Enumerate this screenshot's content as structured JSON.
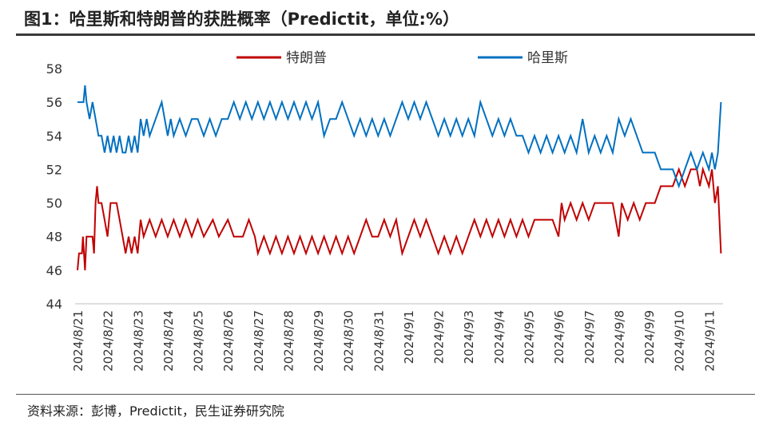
{
  "title": "图1：哈里斯和特朗普的获胜概率（Predictit，单位:%）",
  "source": "资料来源：彭博，Predictit，民生证券研究院",
  "chart_data": {
    "type": "line",
    "ylim": [
      44,
      58
    ],
    "yticks": [
      44,
      46,
      48,
      50,
      52,
      54,
      56,
      58
    ],
    "x_labels": [
      "2024/8/21",
      "2024/8/22",
      "2024/8/23",
      "2024/8/24",
      "2024/8/25",
      "2024/8/26",
      "2024/8/27",
      "2024/8/28",
      "2024/8/29",
      "2024/8/30",
      "2024/8/31",
      "2024/9/1",
      "2024/9/2",
      "2024/9/3",
      "2024/9/4",
      "2024/9/5",
      "2024/9/6",
      "2024/9/7",
      "2024/9/8",
      "2024/9/9",
      "2024/9/10",
      "2024/9/11"
    ],
    "legend_position": "top",
    "series": [
      {
        "name": "特朗普",
        "color": "#c00000",
        "points": [
          [
            0.0,
            46
          ],
          [
            0.05,
            47
          ],
          [
            0.15,
            47
          ],
          [
            0.18,
            48
          ],
          [
            0.25,
            46
          ],
          [
            0.3,
            48
          ],
          [
            0.5,
            48
          ],
          [
            0.55,
            47
          ],
          [
            0.6,
            50
          ],
          [
            0.65,
            51
          ],
          [
            0.7,
            50
          ],
          [
            0.8,
            50
          ],
          [
            0.9,
            49
          ],
          [
            1.0,
            48
          ],
          [
            1.1,
            50
          ],
          [
            1.3,
            50
          ],
          [
            1.4,
            49
          ],
          [
            1.5,
            48
          ],
          [
            1.6,
            47
          ],
          [
            1.7,
            48
          ],
          [
            1.8,
            47
          ],
          [
            1.9,
            48
          ],
          [
            2.0,
            47
          ],
          [
            2.1,
            49
          ],
          [
            2.2,
            48
          ],
          [
            2.4,
            49
          ],
          [
            2.6,
            48
          ],
          [
            2.8,
            49
          ],
          [
            3.0,
            48
          ],
          [
            3.2,
            49
          ],
          [
            3.4,
            48
          ],
          [
            3.6,
            49
          ],
          [
            3.8,
            48
          ],
          [
            4.0,
            49
          ],
          [
            4.2,
            48
          ],
          [
            4.5,
            49
          ],
          [
            4.7,
            48
          ],
          [
            5.0,
            49
          ],
          [
            5.2,
            48
          ],
          [
            5.5,
            48
          ],
          [
            5.7,
            49
          ],
          [
            5.9,
            48
          ],
          [
            6.0,
            47
          ],
          [
            6.2,
            48
          ],
          [
            6.4,
            47
          ],
          [
            6.6,
            48
          ],
          [
            6.8,
            47
          ],
          [
            7.0,
            48
          ],
          [
            7.2,
            47
          ],
          [
            7.4,
            48
          ],
          [
            7.6,
            47
          ],
          [
            7.8,
            48
          ],
          [
            8.0,
            47
          ],
          [
            8.2,
            48
          ],
          [
            8.4,
            47
          ],
          [
            8.6,
            48
          ],
          [
            8.8,
            47
          ],
          [
            9.0,
            48
          ],
          [
            9.2,
            47
          ],
          [
            9.4,
            48
          ],
          [
            9.6,
            49
          ],
          [
            9.8,
            48
          ],
          [
            10.0,
            48
          ],
          [
            10.2,
            49
          ],
          [
            10.4,
            48
          ],
          [
            10.6,
            49
          ],
          [
            10.8,
            47
          ],
          [
            11.0,
            48
          ],
          [
            11.2,
            49
          ],
          [
            11.4,
            48
          ],
          [
            11.6,
            49
          ],
          [
            11.8,
            48
          ],
          [
            12.0,
            47
          ],
          [
            12.2,
            48
          ],
          [
            12.4,
            47
          ],
          [
            12.6,
            48
          ],
          [
            12.8,
            47
          ],
          [
            13.0,
            48
          ],
          [
            13.2,
            49
          ],
          [
            13.4,
            48
          ],
          [
            13.6,
            49
          ],
          [
            13.8,
            48
          ],
          [
            14.0,
            49
          ],
          [
            14.2,
            48
          ],
          [
            14.4,
            49
          ],
          [
            14.6,
            48
          ],
          [
            14.8,
            49
          ],
          [
            15.0,
            48
          ],
          [
            15.2,
            49
          ],
          [
            15.5,
            49
          ],
          [
            15.8,
            49
          ],
          [
            16.0,
            48
          ],
          [
            16.1,
            50
          ],
          [
            16.2,
            49
          ],
          [
            16.4,
            50
          ],
          [
            16.6,
            49
          ],
          [
            16.8,
            50
          ],
          [
            17.0,
            49
          ],
          [
            17.2,
            50
          ],
          [
            17.5,
            50
          ],
          [
            17.8,
            50
          ],
          [
            18.0,
            48
          ],
          [
            18.1,
            50
          ],
          [
            18.3,
            49
          ],
          [
            18.5,
            50
          ],
          [
            18.7,
            49
          ],
          [
            18.9,
            50
          ],
          [
            19.0,
            50
          ],
          [
            19.2,
            50
          ],
          [
            19.4,
            51
          ],
          [
            19.6,
            51
          ],
          [
            19.8,
            51
          ],
          [
            20.0,
            52
          ],
          [
            20.2,
            51
          ],
          [
            20.4,
            52
          ],
          [
            20.6,
            52
          ],
          [
            20.7,
            51
          ],
          [
            20.8,
            52
          ],
          [
            21.0,
            51
          ],
          [
            21.1,
            52
          ],
          [
            21.2,
            50
          ],
          [
            21.3,
            51
          ],
          [
            21.4,
            47
          ]
        ]
      },
      {
        "name": "哈里斯",
        "color": "#0070c0",
        "points": [
          [
            0.0,
            56
          ],
          [
            0.2,
            56
          ],
          [
            0.25,
            57
          ],
          [
            0.3,
            56
          ],
          [
            0.4,
            55
          ],
          [
            0.5,
            56
          ],
          [
            0.6,
            55
          ],
          [
            0.7,
            54
          ],
          [
            0.8,
            54
          ],
          [
            0.9,
            53
          ],
          [
            1.0,
            54
          ],
          [
            1.1,
            53
          ],
          [
            1.2,
            54
          ],
          [
            1.3,
            53
          ],
          [
            1.4,
            54
          ],
          [
            1.5,
            53
          ],
          [
            1.6,
            53
          ],
          [
            1.7,
            54
          ],
          [
            1.8,
            53
          ],
          [
            1.9,
            54
          ],
          [
            2.0,
            53
          ],
          [
            2.1,
            55
          ],
          [
            2.2,
            54
          ],
          [
            2.3,
            55
          ],
          [
            2.4,
            54
          ],
          [
            2.6,
            55
          ],
          [
            2.8,
            56
          ],
          [
            2.9,
            55
          ],
          [
            3.0,
            54
          ],
          [
            3.1,
            55
          ],
          [
            3.2,
            54
          ],
          [
            3.4,
            55
          ],
          [
            3.6,
            54
          ],
          [
            3.8,
            55
          ],
          [
            4.0,
            55
          ],
          [
            4.2,
            54
          ],
          [
            4.4,
            55
          ],
          [
            4.6,
            54
          ],
          [
            4.8,
            55
          ],
          [
            5.0,
            55
          ],
          [
            5.2,
            56
          ],
          [
            5.4,
            55
          ],
          [
            5.6,
            56
          ],
          [
            5.8,
            55
          ],
          [
            6.0,
            56
          ],
          [
            6.2,
            55
          ],
          [
            6.4,
            56
          ],
          [
            6.6,
            55
          ],
          [
            6.8,
            56
          ],
          [
            7.0,
            55
          ],
          [
            7.2,
            56
          ],
          [
            7.4,
            55
          ],
          [
            7.6,
            56
          ],
          [
            7.8,
            55
          ],
          [
            8.0,
            56
          ],
          [
            8.2,
            54
          ],
          [
            8.4,
            55
          ],
          [
            8.6,
            55
          ],
          [
            8.8,
            56
          ],
          [
            9.0,
            55
          ],
          [
            9.2,
            54
          ],
          [
            9.4,
            55
          ],
          [
            9.6,
            54
          ],
          [
            9.8,
            55
          ],
          [
            10.0,
            54
          ],
          [
            10.2,
            55
          ],
          [
            10.4,
            54
          ],
          [
            10.6,
            55
          ],
          [
            10.8,
            56
          ],
          [
            11.0,
            55
          ],
          [
            11.2,
            56
          ],
          [
            11.4,
            55
          ],
          [
            11.6,
            56
          ],
          [
            11.8,
            55
          ],
          [
            12.0,
            54
          ],
          [
            12.2,
            55
          ],
          [
            12.4,
            54
          ],
          [
            12.6,
            55
          ],
          [
            12.8,
            54
          ],
          [
            13.0,
            55
          ],
          [
            13.2,
            54
          ],
          [
            13.4,
            56
          ],
          [
            13.6,
            55
          ],
          [
            13.8,
            54
          ],
          [
            14.0,
            55
          ],
          [
            14.2,
            54
          ],
          [
            14.4,
            55
          ],
          [
            14.6,
            54
          ],
          [
            14.8,
            54
          ],
          [
            15.0,
            53
          ],
          [
            15.2,
            54
          ],
          [
            15.4,
            53
          ],
          [
            15.6,
            54
          ],
          [
            15.8,
            53
          ],
          [
            16.0,
            54
          ],
          [
            16.2,
            53
          ],
          [
            16.4,
            54
          ],
          [
            16.6,
            53
          ],
          [
            16.8,
            55
          ],
          [
            17.0,
            53
          ],
          [
            17.2,
            54
          ],
          [
            17.4,
            53
          ],
          [
            17.6,
            54
          ],
          [
            17.8,
            53
          ],
          [
            18.0,
            55
          ],
          [
            18.2,
            54
          ],
          [
            18.4,
            55
          ],
          [
            18.6,
            54
          ],
          [
            18.8,
            53
          ],
          [
            19.0,
            53
          ],
          [
            19.2,
            53
          ],
          [
            19.4,
            52
          ],
          [
            19.6,
            52
          ],
          [
            19.8,
            52
          ],
          [
            20.0,
            51
          ],
          [
            20.2,
            52
          ],
          [
            20.4,
            53
          ],
          [
            20.6,
            52
          ],
          [
            20.8,
            53
          ],
          [
            21.0,
            52
          ],
          [
            21.1,
            53
          ],
          [
            21.2,
            52
          ],
          [
            21.3,
            53
          ],
          [
            21.4,
            56
          ]
        ]
      }
    ]
  }
}
